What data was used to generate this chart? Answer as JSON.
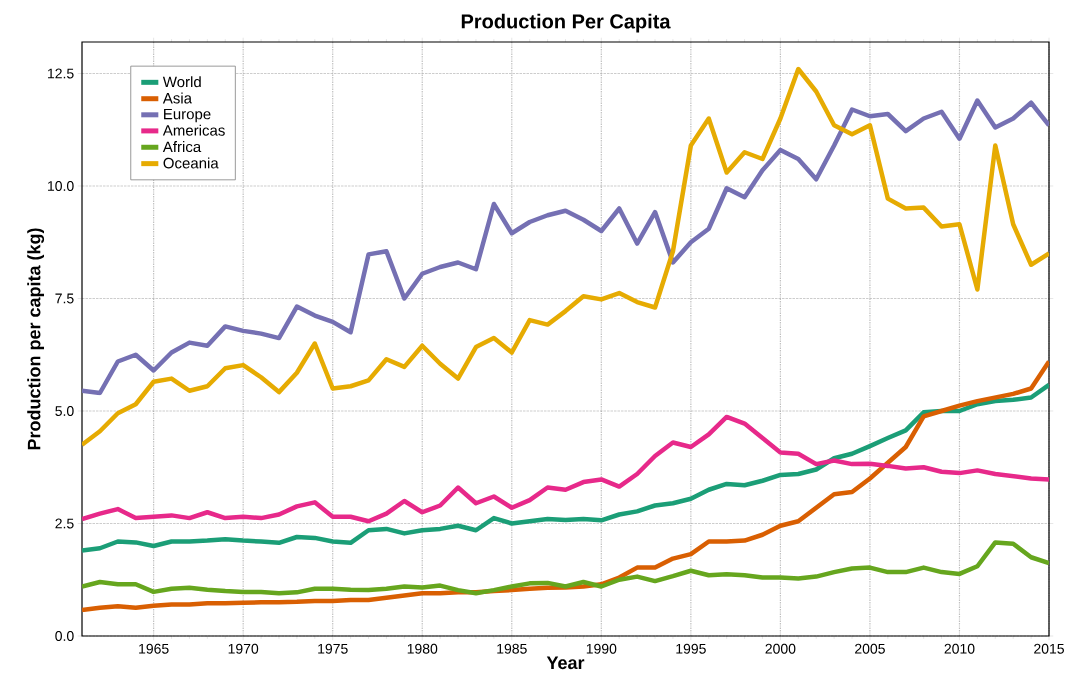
{
  "chart_data": {
    "type": "line",
    "title": "Production Per Capita",
    "xlabel": "Year",
    "ylabel": "Production per capita (kg)",
    "x": [
      1961,
      1962,
      1963,
      1964,
      1965,
      1966,
      1967,
      1968,
      1969,
      1970,
      1971,
      1972,
      1973,
      1974,
      1975,
      1976,
      1977,
      1978,
      1979,
      1980,
      1981,
      1982,
      1983,
      1984,
      1985,
      1986,
      1987,
      1988,
      1989,
      1990,
      1991,
      1992,
      1993,
      1994,
      1995,
      1996,
      1997,
      1998,
      1999,
      2000,
      2001,
      2002,
      2003,
      2004,
      2005,
      2006,
      2007,
      2008,
      2009,
      2010,
      2011,
      2012,
      2013,
      2014,
      2015
    ],
    "series": [
      {
        "name": "World",
        "color": "#1b9e77",
        "values": [
          1.9,
          1.95,
          2.1,
          2.08,
          2.0,
          2.1,
          2.1,
          2.12,
          2.15,
          2.12,
          2.1,
          2.07,
          2.2,
          2.18,
          2.1,
          2.07,
          2.35,
          2.38,
          2.28,
          2.35,
          2.38,
          2.45,
          2.35,
          2.62,
          2.5,
          2.55,
          2.6,
          2.58,
          2.6,
          2.57,
          2.7,
          2.77,
          2.9,
          2.95,
          3.05,
          3.25,
          3.38,
          3.35,
          3.45,
          3.58,
          3.6,
          3.7,
          3.95,
          4.05,
          4.22,
          4.4,
          4.57,
          4.97,
          5.0,
          5.0,
          5.15,
          5.22,
          5.25,
          5.3,
          5.58
        ]
      },
      {
        "name": "Asia",
        "color": "#d95f02",
        "values": [
          0.58,
          0.63,
          0.66,
          0.63,
          0.67,
          0.7,
          0.7,
          0.73,
          0.73,
          0.74,
          0.75,
          0.75,
          0.76,
          0.78,
          0.78,
          0.8,
          0.8,
          0.85,
          0.9,
          0.95,
          0.95,
          0.97,
          0.97,
          1.0,
          1.02,
          1.05,
          1.07,
          1.08,
          1.1,
          1.15,
          1.3,
          1.52,
          1.52,
          1.72,
          1.82,
          2.1,
          2.1,
          2.12,
          2.25,
          2.45,
          2.55,
          2.85,
          3.15,
          3.2,
          3.5,
          3.85,
          4.2,
          4.88,
          5.0,
          5.12,
          5.22,
          5.3,
          5.38,
          5.5,
          6.1
        ]
      },
      {
        "name": "Europe",
        "color": "#7570b3",
        "values": [
          5.45,
          5.4,
          6.1,
          6.25,
          5.9,
          6.3,
          6.52,
          6.45,
          6.88,
          6.78,
          6.72,
          6.62,
          7.32,
          7.12,
          6.98,
          6.75,
          8.48,
          8.55,
          7.5,
          8.05,
          8.2,
          8.3,
          8.15,
          9.6,
          8.95,
          9.2,
          9.35,
          9.45,
          9.25,
          9.0,
          9.5,
          8.72,
          9.42,
          8.3,
          8.75,
          9.05,
          9.95,
          9.75,
          10.35,
          10.8,
          10.6,
          10.15,
          10.9,
          11.7,
          11.55,
          11.6,
          11.22,
          11.5,
          11.65,
          11.05,
          11.9,
          11.3,
          11.5,
          11.85,
          11.35
        ]
      },
      {
        "name": "Americas",
        "color": "#e7298a",
        "values": [
          2.6,
          2.72,
          2.82,
          2.62,
          2.65,
          2.68,
          2.62,
          2.75,
          2.62,
          2.65,
          2.62,
          2.7,
          2.88,
          2.97,
          2.65,
          2.65,
          2.55,
          2.72,
          3.0,
          2.75,
          2.9,
          3.3,
          2.95,
          3.1,
          2.85,
          3.02,
          3.3,
          3.25,
          3.42,
          3.48,
          3.32,
          3.6,
          4.0,
          4.3,
          4.2,
          4.48,
          4.87,
          4.72,
          4.4,
          4.08,
          4.05,
          3.82,
          3.9,
          3.82,
          3.83,
          3.78,
          3.72,
          3.75,
          3.65,
          3.62,
          3.68,
          3.6,
          3.55,
          3.5,
          3.48
        ]
      },
      {
        "name": "Africa",
        "color": "#66a61e",
        "values": [
          1.1,
          1.2,
          1.15,
          1.15,
          0.98,
          1.05,
          1.07,
          1.03,
          1.0,
          0.98,
          0.98,
          0.95,
          0.97,
          1.05,
          1.05,
          1.03,
          1.02,
          1.05,
          1.1,
          1.08,
          1.12,
          1.02,
          0.95,
          1.02,
          1.1,
          1.17,
          1.18,
          1.1,
          1.2,
          1.1,
          1.25,
          1.32,
          1.22,
          1.33,
          1.45,
          1.35,
          1.37,
          1.35,
          1.3,
          1.3,
          1.28,
          1.32,
          1.42,
          1.5,
          1.52,
          1.42,
          1.42,
          1.52,
          1.42,
          1.38,
          1.55,
          2.08,
          2.05,
          1.75,
          1.62
        ]
      },
      {
        "name": "Oceania",
        "color": "#e6ab02",
        "values": [
          4.25,
          4.55,
          4.95,
          5.15,
          5.65,
          5.72,
          5.45,
          5.55,
          5.95,
          6.02,
          5.75,
          5.42,
          5.85,
          6.5,
          5.5,
          5.55,
          5.68,
          6.15,
          5.98,
          6.45,
          6.05,
          5.72,
          6.42,
          6.62,
          6.3,
          7.02,
          6.92,
          7.22,
          7.55,
          7.48,
          7.62,
          7.42,
          7.3,
          8.55,
          10.9,
          11.5,
          10.3,
          10.75,
          10.6,
          11.5,
          12.6,
          12.1,
          11.35,
          11.15,
          11.35,
          9.72,
          9.5,
          9.52,
          9.1,
          9.15,
          7.7,
          10.9,
          9.15,
          8.25,
          8.5
        ]
      }
    ],
    "xlim": [
      1961,
      2015
    ],
    "ylim": [
      0,
      13.2
    ],
    "xticks": [
      1965,
      1970,
      1975,
      1980,
      1985,
      1990,
      1995,
      2000,
      2005,
      2010,
      2015
    ],
    "yticks": [
      {
        "value": 0,
        "label": "0.0"
      },
      2.5,
      {
        "value": 5,
        "label": "5.0"
      },
      7.5,
      {
        "value": 10,
        "label": "10.0"
      },
      12.5
    ],
    "grid": true,
    "legend": "top left",
    "marker": "none",
    "line_style": "solid"
  }
}
